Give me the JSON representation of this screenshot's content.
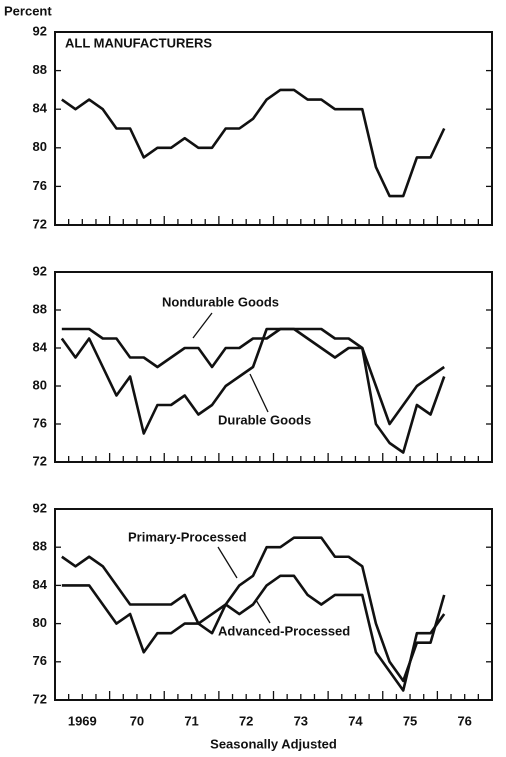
{
  "chart_data": [
    {
      "type": "line",
      "title": "ALL MANUFACTURERS",
      "ylabel": "Percent",
      "xlim": [
        1969,
        1977
      ],
      "ylim": [
        72,
        92
      ],
      "yticks": [
        72,
        76,
        80,
        84,
        88,
        92
      ],
      "minor_ticks_per_year": 4,
      "x": [
        1969.125,
        1969.375,
        1969.625,
        1969.875,
        1970.125,
        1970.375,
        1970.625,
        1970.875,
        1971.125,
        1971.375,
        1971.625,
        1971.875,
        1972.125,
        1972.375,
        1972.625,
        1972.875,
        1973.125,
        1973.375,
        1973.625,
        1973.875,
        1974.125,
        1974.375,
        1974.625,
        1974.875,
        1975.125,
        1975.375,
        1975.625,
        1975.875,
        1976.125
      ],
      "series": [
        {
          "color": "#111111",
          "values": [
            85,
            84,
            85,
            84,
            82,
            82,
            79,
            80,
            80,
            81,
            80,
            80,
            82,
            82,
            83,
            85,
            86,
            86,
            85,
            85,
            84,
            84,
            84,
            78,
            75,
            75,
            79,
            79,
            82
          ]
        }
      ]
    },
    {
      "type": "line",
      "xlim": [
        1969,
        1977
      ],
      "ylim": [
        72,
        92
      ],
      "yticks": [
        72,
        76,
        80,
        84,
        88,
        92
      ],
      "minor_ticks_per_year": 4,
      "x": [
        1969.125,
        1969.375,
        1969.625,
        1969.875,
        1970.125,
        1970.375,
        1970.625,
        1970.875,
        1971.125,
        1971.375,
        1971.625,
        1971.875,
        1972.125,
        1972.375,
        1972.625,
        1972.875,
        1973.125,
        1973.375,
        1973.625,
        1973.875,
        1974.125,
        1974.375,
        1974.625,
        1974.875,
        1975.125,
        1975.375,
        1975.625,
        1975.875,
        1976.125
      ],
      "series": [
        {
          "name": "Nondurable Goods",
          "color": "#111111",
          "values": [
            86,
            86,
            86,
            85,
            85,
            83,
            83,
            82,
            83,
            84,
            84,
            82,
            84,
            84,
            85,
            85,
            86,
            86,
            86,
            86,
            85,
            85,
            84,
            80,
            76,
            78,
            80,
            81,
            82
          ]
        },
        {
          "name": "Durable Goods",
          "color": "#111111",
          "values": [
            85,
            83,
            85,
            82,
            79,
            81,
            75,
            78,
            78,
            79,
            77,
            78,
            80,
            81,
            82,
            86,
            86,
            86,
            85,
            84,
            83,
            84,
            84,
            76,
            74,
            73,
            78,
            77,
            81
          ]
        }
      ]
    },
    {
      "type": "line",
      "xlabel": "Seasonally Adjusted",
      "xlim": [
        1969,
        1977
      ],
      "ylim": [
        72,
        92
      ],
      "yticks": [
        72,
        76,
        80,
        84,
        88,
        92
      ],
      "minor_ticks_per_year": 4,
      "xticks": [
        {
          "value": 1969.5,
          "label": "1969"
        },
        {
          "value": 1970.5,
          "label": "70"
        },
        {
          "value": 1971.5,
          "label": "71"
        },
        {
          "value": 1972.5,
          "label": "72"
        },
        {
          "value": 1973.5,
          "label": "73"
        },
        {
          "value": 1974.5,
          "label": "74"
        },
        {
          "value": 1975.5,
          "label": "75"
        },
        {
          "value": 1976.5,
          "label": "76"
        }
      ],
      "x": [
        1969.125,
        1969.375,
        1969.625,
        1969.875,
        1970.125,
        1970.375,
        1970.625,
        1970.875,
        1971.125,
        1971.375,
        1971.625,
        1971.875,
        1972.125,
        1972.375,
        1972.625,
        1972.875,
        1973.125,
        1973.375,
        1973.625,
        1973.875,
        1974.125,
        1974.375,
        1974.625,
        1974.875,
        1975.125,
        1975.375,
        1975.625,
        1975.875,
        1976.125
      ],
      "series": [
        {
          "name": "Primary-Processed",
          "color": "#111111",
          "values": [
            87,
            86,
            87,
            86,
            84,
            82,
            82,
            82,
            82,
            83,
            80,
            81,
            82,
            84,
            85,
            88,
            88,
            89,
            89,
            89,
            87,
            87,
            86,
            80,
            76,
            74,
            78,
            78,
            83
          ]
        },
        {
          "name": "Advanced-Processed",
          "color": "#111111",
          "values": [
            84,
            84,
            84,
            82,
            80,
            81,
            77,
            79,
            79,
            80,
            80,
            79,
            82,
            81,
            82,
            84,
            85,
            85,
            83,
            82,
            83,
            83,
            83,
            77,
            75,
            73,
            79,
            79,
            81
          ]
        }
      ]
    }
  ]
}
